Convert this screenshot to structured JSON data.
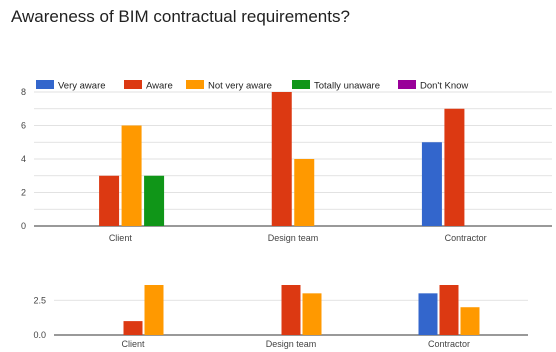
{
  "title": "Awareness of BIM contractual requirements?",
  "legend": [
    {
      "name": "Very aware",
      "color": "#3366cc"
    },
    {
      "name": "Aware",
      "color": "#dc3912"
    },
    {
      "name": "Not very aware",
      "color": "#ff9900"
    },
    {
      "name": "Totally unaware",
      "color": "#109618"
    },
    {
      "name": "Don't Know",
      "color": "#990099"
    }
  ],
  "chart_data": [
    {
      "type": "bar",
      "categories": [
        "Client",
        "Design team",
        "Contractor"
      ],
      "ylim": [
        0,
        8
      ],
      "yticks": [
        0,
        2,
        4,
        6,
        8
      ],
      "grid": true,
      "legend_position": "top",
      "series": [
        {
          "name": "Very aware",
          "values": [
            0,
            0,
            5
          ]
        },
        {
          "name": "Aware",
          "values": [
            3,
            8,
            7
          ]
        },
        {
          "name": "Not very aware",
          "values": [
            6,
            4,
            0
          ]
        },
        {
          "name": "Totally unaware",
          "values": [
            3,
            0,
            0
          ]
        },
        {
          "name": "Don't Know",
          "values": [
            0,
            0,
            0
          ]
        }
      ]
    },
    {
      "type": "bar",
      "categories": [
        "Client",
        "Design team",
        "Contractor"
      ],
      "ylim": [
        0,
        3.6
      ],
      "yticks": [
        0,
        2.5
      ],
      "ytick_labels": [
        "0.0",
        "2.5"
      ],
      "grid": true,
      "series": [
        {
          "name": "Very aware",
          "values": [
            0,
            0,
            3
          ]
        },
        {
          "name": "Aware",
          "values": [
            1,
            3.6,
            3.6
          ]
        },
        {
          "name": "Not very aware",
          "values": [
            3.6,
            3,
            2
          ]
        }
      ]
    }
  ]
}
